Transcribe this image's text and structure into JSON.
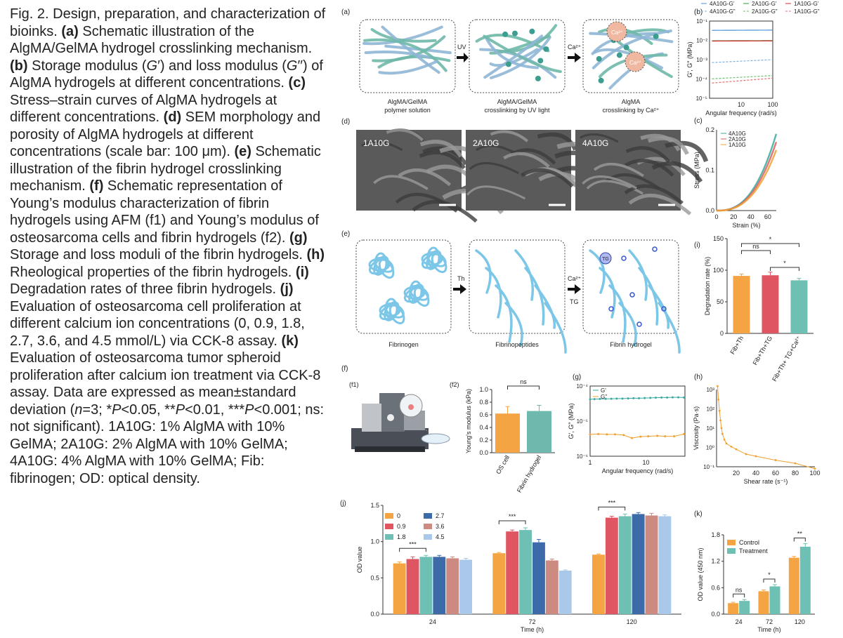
{
  "caption": {
    "segments": [
      {
        "t": "Fig. 2. Design, preparation, and characterization of bioinks. "
      },
      {
        "t": "(a)",
        "b": 1
      },
      {
        "t": " Schematic illustration of the AlgMA/GelMA hydrogel crosslinking mechanism. "
      },
      {
        "t": "(b)",
        "b": 1
      },
      {
        "t": " Storage modulus ("
      },
      {
        "t": "G",
        "i": 1
      },
      {
        "t": "′) and loss modulus ("
      },
      {
        "t": "G",
        "i": 1
      },
      {
        "t": "′′) of AlgMA hydrogels at different concentrations. "
      },
      {
        "t": "(c)",
        "b": 1
      },
      {
        "t": " Stress–strain curves of AlgMA hydrogels at different concentrations. "
      },
      {
        "t": "(d)",
        "b": 1
      },
      {
        "t": " SEM morphology and porosity of AlgMA hydrogels at different concentrations (scale bar: 100 μm). "
      },
      {
        "t": "(e)",
        "b": 1
      },
      {
        "t": " Schematic illustration of the fibrin hydrogel crosslinking mechanism. "
      },
      {
        "t": "(f)",
        "b": 1
      },
      {
        "t": " Schematic representation of Young’s modulus characterization of fibrin hydrogels using AFM (f1) and Young’s modulus of osteosarcoma cells and fibrin hydrogels (f2). "
      },
      {
        "t": "(g)",
        "b": 1
      },
      {
        "t": " Storage and loss moduli of the fibrin hydrogels. "
      },
      {
        "t": "(h)",
        "b": 1
      },
      {
        "t": " Rheological properties of the fibrin hydrogels. "
      },
      {
        "t": "(i)",
        "b": 1
      },
      {
        "t": " Degradation rates of three fibrin hydrogels. "
      },
      {
        "t": "(j)",
        "b": 1
      },
      {
        "t": " Evaluation of osteosarcoma cell proliferation at different calcium ion concentrations (0, 0.9, 1.8, 2.7, 3.6, and 4.5 mmol/L) via CCK-8 assay. "
      },
      {
        "t": "(k)",
        "b": 1
      },
      {
        "t": " Evaluation of osteosarcoma tumor spheroid proliferation after calcium ion treatment via CCK-8 assay. Data are expressed as mean±standard deviation ("
      },
      {
        "t": "n",
        "i": 1
      },
      {
        "t": "=3; *"
      },
      {
        "t": "P",
        "i": 1
      },
      {
        "t": "<0.05, **"
      },
      {
        "t": "P",
        "i": 1
      },
      {
        "t": "<0.01, ***"
      },
      {
        "t": "P",
        "i": 1
      },
      {
        "t": "<0.001; ns: not significant). 1A10G: 1% AlgMA with 10% GelMA; 2A10G: 2% AlgMA with 10% GelMA; 4A10G: 4% AlgMA with 10% GelMA; Fib: fibrinogen; OD: optical density."
      }
    ]
  },
  "panels": {
    "a": {
      "label": "(a)",
      "arrow1": "UV",
      "arrow2": "Ca²⁺",
      "ion": "Ca²⁺",
      "box_labels": [
        [
          "AlgMA/GelMA",
          "polymer solution"
        ],
        [
          "AlgMA/GelMA",
          "crosslinking by UV light"
        ],
        [
          "AlgMA",
          "crosslinking by Ca²⁺"
        ]
      ]
    },
    "d": {
      "label": "(d)",
      "images": [
        "1A10G",
        "2A10G",
        "4A10G"
      ]
    },
    "e": {
      "label": "(e)",
      "arrow1": "Th",
      "arrow2": "Ca²⁺",
      "arrow2b": "TG",
      "tg": "TG",
      "box_labels": [
        "Fibrinogen",
        "Fibrinopeptides",
        "Fibrin hydrogel"
      ]
    },
    "f": {
      "label": "(f)",
      "f1": "(f1)",
      "f2": "(f2)"
    }
  },
  "chart_data": [
    {
      "id": "b",
      "panel": "(b)",
      "type": "line",
      "xscale": "log",
      "yscale": "log",
      "xlabel": "Angular frequency (rad/s)",
      "ylabel": "G′, G″ (MPa)",
      "xlim": [
        1,
        100
      ],
      "ylim": [
        1e-05,
        0.1
      ],
      "xticks": [
        "10",
        "100"
      ],
      "yticks": [
        "10⁻¹",
        "10⁻²",
        "10⁻³",
        "10⁻⁴",
        "10⁻⁵"
      ],
      "legend": [
        "4A10G-G'",
        "2A10G-G'",
        "1A10G-G'",
        "4A10G-G\"",
        "2A10G-G\"",
        "1A10G-G\""
      ],
      "series": [
        {
          "name": "4A10G-G'",
          "color": "#4a90d9",
          "dash": "0",
          "y0": 0.033,
          "y1": 0.034
        },
        {
          "name": "2A10G-G'",
          "color": "#2e9e3e",
          "dash": "0",
          "y0": 0.0095,
          "y1": 0.0097
        },
        {
          "name": "1A10G-G'",
          "color": "#d62728",
          "dash": "0",
          "y0": 0.0092,
          "y1": 0.0094
        },
        {
          "name": "4A10G-G\"",
          "color": "#7fb0e0",
          "dash": "3,2",
          "y0": 0.0007,
          "y1": 0.001
        },
        {
          "name": "2A10G-G\"",
          "color": "#6cc070",
          "dash": "3,2",
          "y0": 0.0001,
          "y1": 0.00015
        },
        {
          "name": "1A10G-G\"",
          "color": "#e07070",
          "dash": "3,2",
          "y0": 6e-05,
          "y1": 0.00011
        }
      ]
    },
    {
      "id": "c",
      "panel": "(c)",
      "type": "line",
      "xlabel": "Strain (%)",
      "ylabel": "Stress (MPa)",
      "xlim": [
        0,
        70
      ],
      "ylim": [
        0,
        0.2
      ],
      "xticks": [
        "0",
        "20",
        "40",
        "60"
      ],
      "yticks": [
        "0.0",
        "0.1",
        "0.2"
      ],
      "series": [
        {
          "name": "4A10G",
          "color": "#3aa9a0",
          "end": 0.19
        },
        {
          "name": "2A10G",
          "color": "#d95f5f",
          "end": 0.17
        },
        {
          "name": "1A10G",
          "color": "#f0a030",
          "end": 0.15
        }
      ]
    },
    {
      "id": "i",
      "panel": "(i)",
      "type": "bar",
      "ylabel": "Degradation rate (%)",
      "ylim": [
        0,
        150
      ],
      "yticks": [
        "0",
        "50",
        "100",
        "150"
      ],
      "categories": [
        "Fib+Th",
        "Fib+Th+TG",
        "Fib+Th+ TG+Ca²⁺"
      ],
      "values": [
        91,
        92,
        84
      ],
      "errors": [
        3,
        5,
        3
      ],
      "colors": [
        "#f4a442",
        "#e05562",
        "#6fc0b4"
      ],
      "sig": [
        {
          "a": 0,
          "b": 1,
          "label": "ns"
        },
        {
          "a": 1,
          "b": 2,
          "label": "*"
        },
        {
          "a": 0,
          "b": 2,
          "label": "*"
        }
      ]
    },
    {
      "id": "f2",
      "panel": "(f2)",
      "type": "bar",
      "ylabel": "Young's modulus (kPa)",
      "ylim": [
        0,
        1.0
      ],
      "yticks": [
        "0.0",
        "0.2",
        "0.4",
        "0.6",
        "0.8",
        "1.0"
      ],
      "categories": [
        "OS cell",
        "Fibrin hydrogel"
      ],
      "values": [
        0.62,
        0.66
      ],
      "errors": [
        0.11,
        0.09
      ],
      "colors": [
        "#f4a442",
        "#6fb8ae"
      ],
      "sig": [
        {
          "a": 0,
          "b": 1,
          "label": "ns"
        }
      ]
    },
    {
      "id": "g",
      "panel": "(g)",
      "type": "line",
      "xscale": "log",
      "yscale": "log",
      "xlabel": "Angular frequency (rad/s)",
      "ylabel": "G′, G″ (MPa)",
      "xlim": [
        1,
        50
      ],
      "ylim": [
        1e-06,
        0.0001
      ],
      "xticks": [
        "1",
        "10"
      ],
      "yticks": [
        "10⁻⁴",
        "10⁻⁵",
        "10⁻⁶"
      ],
      "series": [
        {
          "name": "G'",
          "color": "#3aa9a0",
          "x": [
            1,
            1.2,
            1.5,
            1.9,
            2.4,
            3,
            3.8,
            4.8,
            6,
            7.5,
            9.5,
            12,
            15,
            19,
            24,
            30,
            38,
            48
          ],
          "y": [
            4.2e-05,
            4.25e-05,
            4.3e-05,
            4.32e-05,
            4.35e-05,
            4.4e-05,
            4.4e-05,
            4.45e-05,
            4.5e-05,
            4.5e-05,
            4.55e-05,
            4.6e-05,
            4.65e-05,
            4.7e-05,
            4.7e-05,
            4.75e-05,
            4.75e-05,
            4.7e-05
          ]
        },
        {
          "name": "G\"",
          "color": "#f0a030",
          "x": [
            1,
            1.4,
            2,
            2.8,
            4,
            5.6,
            8,
            11,
            16,
            22,
            32,
            48
          ],
          "y": [
            4.2e-06,
            4.3e-06,
            4.2e-06,
            4.2e-06,
            4e-06,
            3.3e-06,
            3.6e-06,
            3.7e-06,
            3.8e-06,
            3.7e-06,
            3.7e-06,
            4.3e-06
          ]
        }
      ]
    },
    {
      "id": "h",
      "panel": "(h)",
      "type": "line",
      "yscale": "log",
      "xlabel": "Shear rate (s⁻¹)",
      "ylabel": "Viscosity (Pa·s)",
      "xlim": [
        0,
        100
      ],
      "ylim": [
        0.1,
        1000
      ],
      "xticks": [
        "20",
        "40",
        "60",
        "80",
        "100"
      ],
      "yticks": [
        "10³",
        "10²",
        "10¹",
        "10⁰",
        "10⁻¹"
      ],
      "series": [
        {
          "name": "",
          "color": "#f0a030",
          "x": [
            1,
            2,
            3,
            4,
            5,
            6,
            8,
            10,
            15,
            20,
            30,
            40,
            60,
            80,
            100
          ],
          "y": [
            1500,
            300,
            80,
            25,
            10,
            5,
            2.5,
            1.6,
            1.1,
            0.8,
            0.45,
            0.35,
            0.22,
            0.15,
            0.08
          ]
        }
      ]
    },
    {
      "id": "j",
      "panel": "(j)",
      "type": "bar",
      "xlabel": "Time (h)",
      "ylabel": "OD value",
      "ylim": [
        0,
        1.5
      ],
      "yticks": [
        "0.0",
        "0.5",
        "1.0",
        "1.5"
      ],
      "categories": [
        "24",
        "72",
        "120"
      ],
      "series": [
        {
          "name": "0",
          "color": "#f4a442",
          "values": [
            0.7,
            0.84,
            0.82
          ],
          "errors": [
            0.02,
            0.01,
            0.01
          ]
        },
        {
          "name": "0.9",
          "color": "#e05562",
          "values": [
            0.76,
            1.14,
            1.33
          ],
          "errors": [
            0.03,
            0.02,
            0.02
          ]
        },
        {
          "name": "1.8",
          "color": "#6fc0b4",
          "values": [
            0.79,
            1.16,
            1.35
          ],
          "errors": [
            0.02,
            0.03,
            0.03
          ]
        },
        {
          "name": "2.7",
          "color": "#3d6aa8",
          "values": [
            0.79,
            0.99,
            1.38
          ],
          "errors": [
            0.02,
            0.04,
            0.02
          ]
        },
        {
          "name": "3.6",
          "color": "#cc8a80",
          "values": [
            0.77,
            0.74,
            1.36
          ],
          "errors": [
            0.02,
            0.02,
            0.03
          ]
        },
        {
          "name": "4.5",
          "color": "#aac8ea",
          "values": [
            0.75,
            0.6,
            1.35
          ],
          "errors": [
            0.02,
            0.01,
            0.02
          ]
        }
      ],
      "sig": [
        {
          "cat": 0,
          "a": 0,
          "b": 2,
          "label": "***"
        },
        {
          "cat": 1,
          "a": 0,
          "b": 2,
          "label": "***"
        },
        {
          "cat": 2,
          "a": 0,
          "b": 2,
          "label": "***"
        }
      ]
    },
    {
      "id": "k",
      "panel": "(k)",
      "type": "bar",
      "xlabel": "Time (h)",
      "ylabel": "OD value (450 nm)",
      "ylim": [
        0,
        1.8
      ],
      "yticks": [
        "0.0",
        "0.6",
        "1.2",
        "1.8"
      ],
      "categories": [
        "24",
        "72",
        "120"
      ],
      "series": [
        {
          "name": "Control",
          "color": "#f4a442",
          "values": [
            0.25,
            0.52,
            1.28
          ],
          "errors": [
            0.02,
            0.03,
            0.03
          ]
        },
        {
          "name": "Treatment",
          "color": "#6fc0b4",
          "values": [
            0.3,
            0.63,
            1.53
          ],
          "errors": [
            0.03,
            0.04,
            0.07
          ]
        }
      ],
      "sig": [
        {
          "cat": 0,
          "label": "ns"
        },
        {
          "cat": 1,
          "label": "*"
        },
        {
          "cat": 2,
          "label": "**"
        }
      ]
    }
  ]
}
